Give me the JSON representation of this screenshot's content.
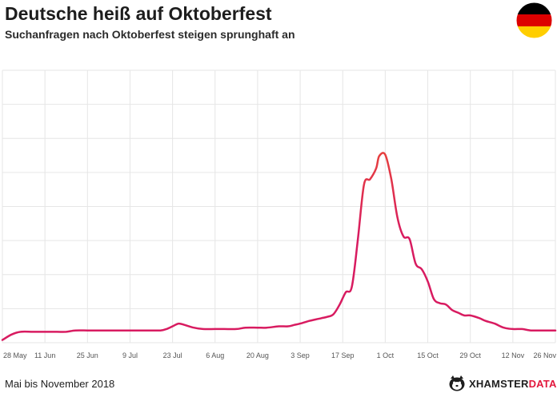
{
  "header": {
    "title": "Deutsche heiß auf Oktoberfest",
    "subtitle": "Suchanfragen nach Oktoberfest steigen sprunghaft an"
  },
  "footer": {
    "period": "Mai bis November 2018",
    "brand_part1": "XHAMSTER",
    "brand_part2": "DATA"
  },
  "colors": {
    "line_base": "#d81b60",
    "line_peak": "#f05a28",
    "grid": "#e6e6e6",
    "flag_black": "#000000",
    "flag_red": "#dd0000",
    "flag_gold": "#ffce00"
  },
  "icons": {
    "flag": "germany-flag-icon",
    "brand": "hamster-logo-icon"
  },
  "chart_data": {
    "type": "line",
    "title": "Deutsche heiß auf Oktoberfest",
    "subtitle": "Suchanfragen nach Oktoberfest steigen sprunghaft an",
    "x_tick_labels": [
      "28 May",
      "11 Jun",
      "25 Jun",
      "9 Jul",
      "23 Jul",
      "6 Aug",
      "20 Aug",
      "3 Sep",
      "17 Sep",
      "1 Oct",
      "15 Oct",
      "29 Oct",
      "12 Nov",
      "26 Nov"
    ],
    "y_axis_labels": false,
    "grid": true,
    "ylim": [
      0,
      100
    ],
    "series": [
      {
        "x": [
          "2018-05-28",
          "2018-05-31",
          "2018-06-03",
          "2018-06-07",
          "2018-06-11",
          "2018-06-15",
          "2018-06-18",
          "2018-06-21",
          "2018-06-25",
          "2018-06-28",
          "2018-07-02",
          "2018-07-05",
          "2018-07-09",
          "2018-07-12",
          "2018-07-16",
          "2018-07-19",
          "2018-07-21",
          "2018-07-23",
          "2018-07-25",
          "2018-07-27",
          "2018-07-30",
          "2018-08-02",
          "2018-08-06",
          "2018-08-09",
          "2018-08-13",
          "2018-08-16",
          "2018-08-20",
          "2018-08-23",
          "2018-08-27",
          "2018-08-30",
          "2018-09-01",
          "2018-09-03",
          "2018-09-06",
          "2018-09-08",
          "2018-09-10",
          "2018-09-12",
          "2018-09-14",
          "2018-09-16",
          "2018-09-18",
          "2018-09-20",
          "2018-09-22",
          "2018-09-24",
          "2018-09-26",
          "2018-09-28",
          "2018-09-29",
          "2018-10-01",
          "2018-10-03",
          "2018-10-05",
          "2018-10-07",
          "2018-10-09",
          "2018-10-11",
          "2018-10-13",
          "2018-10-15",
          "2018-10-17",
          "2018-10-19",
          "2018-10-21",
          "2018-10-23",
          "2018-10-25",
          "2018-10-27",
          "2018-10-29",
          "2018-11-01",
          "2018-11-03",
          "2018-11-06",
          "2018-11-09",
          "2018-11-12",
          "2018-11-15",
          "2018-11-18",
          "2018-11-22",
          "2018-11-26"
        ],
        "values": [
          1,
          3,
          4,
          4,
          4,
          4,
          4,
          4.5,
          4.5,
          4.5,
          4.5,
          4.5,
          4.5,
          4.5,
          4.5,
          4.5,
          5,
          6,
          7,
          6.5,
          5.5,
          5,
          5,
          5,
          5,
          5.5,
          5.5,
          5.5,
          6,
          6,
          6.5,
          7,
          8,
          8.5,
          9,
          9.5,
          10.5,
          14,
          18.5,
          20.5,
          38,
          58,
          60,
          64,
          68.5,
          69,
          60,
          46,
          39,
          38,
          29,
          27,
          22.5,
          16,
          14.5,
          14,
          12,
          11,
          10,
          10,
          9,
          8,
          7,
          5.5,
          5,
          5,
          4.5,
          4.5,
          4.5
        ]
      }
    ]
  }
}
